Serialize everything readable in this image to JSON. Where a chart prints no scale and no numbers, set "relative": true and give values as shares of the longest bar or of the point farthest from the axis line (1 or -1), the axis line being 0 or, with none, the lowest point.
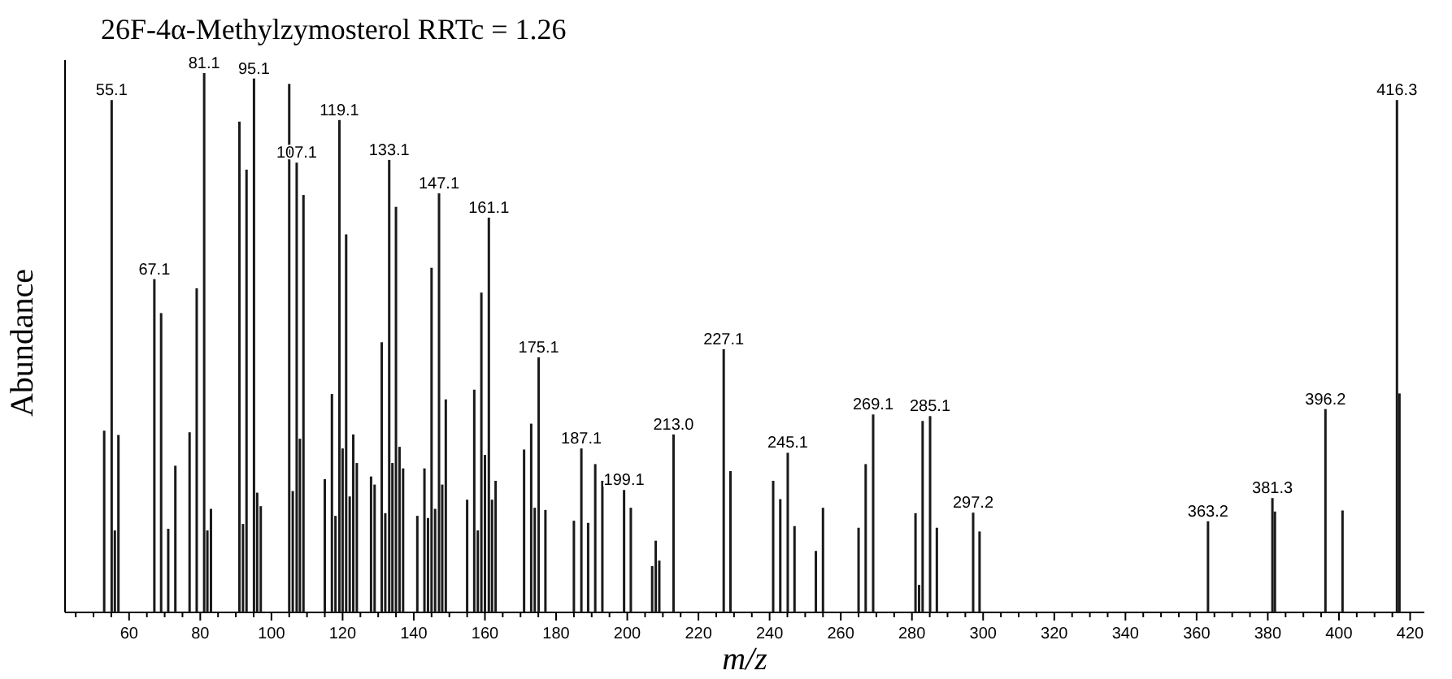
{
  "chart_data": {
    "type": "bar",
    "title": "26F-4α-Methylzymosterol RRTc = 1.26",
    "xlabel": "m/z",
    "ylabel": "Abundance",
    "relative": true,
    "color": "#1a1a1a",
    "x": [
      53,
      55.1,
      56,
      57,
      67.1,
      69,
      71,
      73,
      77,
      79,
      81.1,
      82,
      83,
      91,
      92,
      93,
      95.1,
      96,
      97,
      105,
      106,
      107.1,
      108,
      109,
      115,
      117,
      118,
      119.1,
      120,
      121,
      122,
      123,
      124,
      128,
      129,
      131,
      132,
      133.1,
      134,
      135,
      136,
      137,
      141,
      143,
      144,
      145,
      146,
      147.1,
      148,
      149,
      155,
      157,
      158,
      159,
      160,
      161.1,
      162,
      163,
      171,
      173,
      174,
      175.1,
      177,
      185,
      187.1,
      189,
      191,
      193,
      199.1,
      201,
      207,
      208,
      209,
      213,
      227.1,
      229,
      241,
      243,
      245.1,
      247,
      253,
      255,
      265,
      267,
      269.1,
      281,
      282,
      283,
      285.1,
      287,
      297.2,
      299,
      363.2,
      381.3,
      382,
      396.2,
      401,
      416.3,
      417
    ],
    "values": [
      0.337,
      0.95,
      0.152,
      0.329,
      0.618,
      0.555,
      0.155,
      0.272,
      0.334,
      0.601,
      1.0,
      0.152,
      0.192,
      0.91,
      0.164,
      0.821,
      0.99,
      0.222,
      0.197,
      0.98,
      0.225,
      0.834,
      0.322,
      0.774,
      0.247,
      0.405,
      0.179,
      0.913,
      0.304,
      0.701,
      0.215,
      0.33,
      0.277,
      0.252,
      0.237,
      0.501,
      0.184,
      0.839,
      0.277,
      0.752,
      0.307,
      0.267,
      0.179,
      0.267,
      0.175,
      0.639,
      0.192,
      0.777,
      0.237,
      0.395,
      0.209,
      0.413,
      0.152,
      0.593,
      0.292,
      0.732,
      0.209,
      0.244,
      0.302,
      0.35,
      0.194,
      0.473,
      0.19,
      0.17,
      0.304,
      0.166,
      0.275,
      0.244,
      0.227,
      0.194,
      0.086,
      0.133,
      0.096,
      0.33,
      0.488,
      0.262,
      0.244,
      0.21,
      0.296,
      0.16,
      0.114,
      0.194,
      0.157,
      0.275,
      0.367,
      0.184,
      0.051,
      0.355,
      0.364,
      0.157,
      0.185,
      0.15,
      0.169,
      0.212,
      0.187,
      0.377,
      0.189,
      0.95,
      0.406
    ],
    "annotations": [
      {
        "text": "55.1",
        "x": 55.1,
        "y": 0.95
      },
      {
        "text": "67.1",
        "x": 67.1,
        "y": 0.618
      },
      {
        "text": "81.1",
        "x": 81.1,
        "y": 1.0
      },
      {
        "text": "95.1",
        "x": 95.1,
        "y": 0.99
      },
      {
        "text": "107.1",
        "x": 107.1,
        "y": 0.834
      },
      {
        "text": "119.1",
        "x": 119.1,
        "y": 0.913
      },
      {
        "text": "133.1",
        "x": 133.1,
        "y": 0.839
      },
      {
        "text": "147.1",
        "x": 147.1,
        "y": 0.777
      },
      {
        "text": "161.1",
        "x": 161.1,
        "y": 0.732
      },
      {
        "text": "175.1",
        "x": 175.1,
        "y": 0.473
      },
      {
        "text": "187.1",
        "x": 187.1,
        "y": 0.304
      },
      {
        "text": "199.1",
        "x": 199.1,
        "y": 0.227
      },
      {
        "text": "213.0",
        "x": 213,
        "y": 0.33
      },
      {
        "text": "227.1",
        "x": 227.1,
        "y": 0.488
      },
      {
        "text": "245.1",
        "x": 245.1,
        "y": 0.296
      },
      {
        "text": "269.1",
        "x": 269.1,
        "y": 0.367
      },
      {
        "text": "285.1",
        "x": 285.1,
        "y": 0.364
      },
      {
        "text": "297.2",
        "x": 297.2,
        "y": 0.185
      },
      {
        "text": "363.2",
        "x": 363.2,
        "y": 0.169
      },
      {
        "text": "381.3",
        "x": 381.3,
        "y": 0.212
      },
      {
        "text": "396.2",
        "x": 396.2,
        "y": 0.377
      },
      {
        "text": "416.3",
        "x": 416.3,
        "y": 0.95
      }
    ],
    "xlim": [
      42,
      424
    ],
    "xticks": [
      {
        "value": 45,
        "label": null
      },
      {
        "value": 50,
        "label": null
      },
      {
        "value": 55,
        "label": null
      },
      60,
      {
        "value": 65,
        "label": null
      },
      {
        "value": 70,
        "label": null
      },
      {
        "value": 75,
        "label": null
      },
      80,
      {
        "value": 85,
        "label": null
      },
      {
        "value": 90,
        "label": null
      },
      {
        "value": 95,
        "label": null
      },
      100,
      {
        "value": 105,
        "label": null
      },
      {
        "value": 110,
        "label": null
      },
      {
        "value": 115,
        "label": null
      },
      120,
      {
        "value": 125,
        "label": null
      },
      {
        "value": 130,
        "label": null
      },
      {
        "value": 135,
        "label": null
      },
      140,
      {
        "value": 145,
        "label": null
      },
      {
        "value": 150,
        "label": null
      },
      {
        "value": 155,
        "label": null
      },
      160,
      {
        "value": 165,
        "label": null
      },
      {
        "value": 170,
        "label": null
      },
      {
        "value": 175,
        "label": null
      },
      180,
      {
        "value": 185,
        "label": null
      },
      {
        "value": 190,
        "label": null
      },
      {
        "value": 195,
        "label": null
      },
      200,
      {
        "value": 205,
        "label": null
      },
      {
        "value": 210,
        "label": null
      },
      {
        "value": 215,
        "label": null
      },
      220,
      {
        "value": 225,
        "label": null
      },
      {
        "value": 230,
        "label": null
      },
      {
        "value": 235,
        "label": null
      },
      240,
      {
        "value": 245,
        "label": null
      },
      {
        "value": 250,
        "label": null
      },
      {
        "value": 255,
        "label": null
      },
      260,
      {
        "value": 265,
        "label": null
      },
      {
        "value": 270,
        "label": null
      },
      {
        "value": 275,
        "label": null
      },
      280,
      {
        "value": 285,
        "label": null
      },
      {
        "value": 290,
        "label": null
      },
      {
        "value": 295,
        "label": null
      },
      300,
      {
        "value": 305,
        "label": null
      },
      {
        "value": 310,
        "label": null
      },
      {
        "value": 315,
        "label": null
      },
      320,
      {
        "value": 325,
        "label": null
      },
      {
        "value": 330,
        "label": null
      },
      {
        "value": 335,
        "label": null
      },
      340,
      {
        "value": 345,
        "label": null
      },
      {
        "value": 350,
        "label": null
      },
      {
        "value": 355,
        "label": null
      },
      360,
      {
        "value": 365,
        "label": null
      },
      {
        "value": 370,
        "label": null
      },
      {
        "value": 375,
        "label": null
      },
      380,
      {
        "value": 385,
        "label": null
      },
      {
        "value": 390,
        "label": null
      },
      {
        "value": 395,
        "label": null
      },
      400,
      {
        "value": 405,
        "label": null
      },
      {
        "value": 410,
        "label": null
      },
      {
        "value": 415,
        "label": null
      },
      420
    ]
  }
}
